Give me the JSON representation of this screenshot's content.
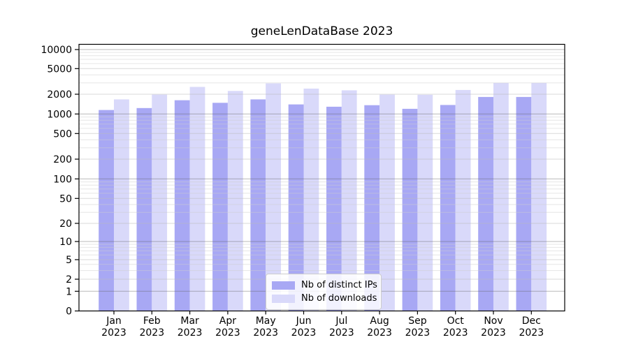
{
  "chart_data": {
    "type": "bar",
    "title": "geneLenDataBase 2023",
    "categories": [
      "Jan 2023",
      "Feb 2023",
      "Mar 2023",
      "Apr 2023",
      "May 2023",
      "Jun 2023",
      "Jul 2023",
      "Aug 2023",
      "Sep 2023",
      "Oct 2023",
      "Nov 2023",
      "Dec 2023"
    ],
    "series": [
      {
        "name": "Nb of distinct IPs",
        "color": "#a8a8f4",
        "values": [
          1150,
          1230,
          1620,
          1480,
          1670,
          1400,
          1290,
          1360,
          1200,
          1370,
          1820,
          1820
        ]
      },
      {
        "name": "Nb of downloads",
        "color": "#d9d9fa",
        "values": [
          1670,
          1970,
          2600,
          2250,
          2950,
          2450,
          2300,
          1970,
          1960,
          2330,
          3000,
          3000
        ]
      }
    ],
    "xlabel": "",
    "ylabel": "",
    "yscale": "symlog",
    "ylim": [
      0,
      12000
    ],
    "yticks": [
      10000,
      5000,
      2000,
      1000,
      500,
      200,
      100,
      50,
      20,
      10,
      5,
      2,
      1,
      0
    ],
    "grid": true,
    "legend_position": "lower center"
  }
}
